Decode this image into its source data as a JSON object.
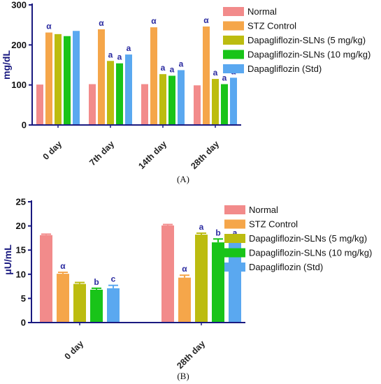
{
  "colors": {
    "axis": "#1a1a80",
    "Normal": "#f28b8b",
    "STZ Control": "#f5a64a",
    "Dapagliflozin-SLNs (5 mg/kg)": "#bcbc10",
    "Dapagliflozin-SLNs (10 mg/kg)": "#19c419",
    "Dapagliflozin (Std)": "#5aa8f0"
  },
  "chart_data": [
    {
      "type": "bar",
      "panel_label": "(A)",
      "ylabel": "mg/dL",
      "ylim": [
        0,
        300
      ],
      "yticks": [
        "0",
        "100",
        "200",
        "300"
      ],
      "categories": [
        "0 day",
        "7th day",
        "14th day",
        "28th day"
      ],
      "legend_position": "right",
      "series": [
        {
          "name": "Normal",
          "values": [
            101,
            102,
            102,
            99
          ],
          "annotations": [
            "",
            "",
            "",
            ""
          ]
        },
        {
          "name": "STZ Control",
          "values": [
            231,
            239,
            244,
            246
          ],
          "annotations": [
            "α",
            "α",
            "α",
            "α"
          ]
        },
        {
          "name": "Dapagliflozin-SLNs (5 mg/kg)",
          "values": [
            227,
            160,
            127,
            115
          ],
          "annotations": [
            "",
            "a",
            "a",
            "a"
          ]
        },
        {
          "name": "Dapagliflozin-SLNs (10 mg/kg)",
          "values": [
            222,
            154,
            123,
            102
          ],
          "annotations": [
            "",
            "a",
            "a",
            "a"
          ]
        },
        {
          "name": "Dapagliflozin (Std)",
          "values": [
            235,
            176,
            137,
            118
          ],
          "annotations": [
            "",
            "a",
            "a",
            "a"
          ]
        }
      ]
    },
    {
      "type": "bar",
      "panel_label": "(B)",
      "ylabel": "μU/mL",
      "ylim": [
        0,
        25
      ],
      "yticks": [
        "0",
        "5",
        "10",
        "15",
        "20",
        "25"
      ],
      "categories": [
        "0 day",
        "28th day"
      ],
      "legend_position": "right",
      "series": [
        {
          "name": "Normal",
          "values": [
            18.1,
            20.1
          ],
          "errors": [
            0.2,
            0.2
          ],
          "annotations": [
            "",
            ""
          ]
        },
        {
          "name": "STZ Control",
          "values": [
            10.1,
            9.3
          ],
          "errors": [
            0.3,
            0.5
          ],
          "annotations": [
            "α",
            "α"
          ]
        },
        {
          "name": "Dapagliflozin-SLNs (5 mg/kg)",
          "values": [
            8.0,
            18.2
          ],
          "errors": [
            0.3,
            0.3
          ],
          "annotations": [
            "",
            "a"
          ]
        },
        {
          "name": "Dapagliflozin-SLNs (10 mg/kg)",
          "values": [
            6.8,
            16.6
          ],
          "errors": [
            0.3,
            0.7
          ],
          "annotations": [
            "b",
            "b"
          ]
        },
        {
          "name": "Dapagliflozin (Std)",
          "values": [
            7.1,
            17.2
          ],
          "errors": [
            0.6,
            0.1
          ],
          "annotations": [
            "c",
            "a"
          ]
        }
      ]
    }
  ]
}
